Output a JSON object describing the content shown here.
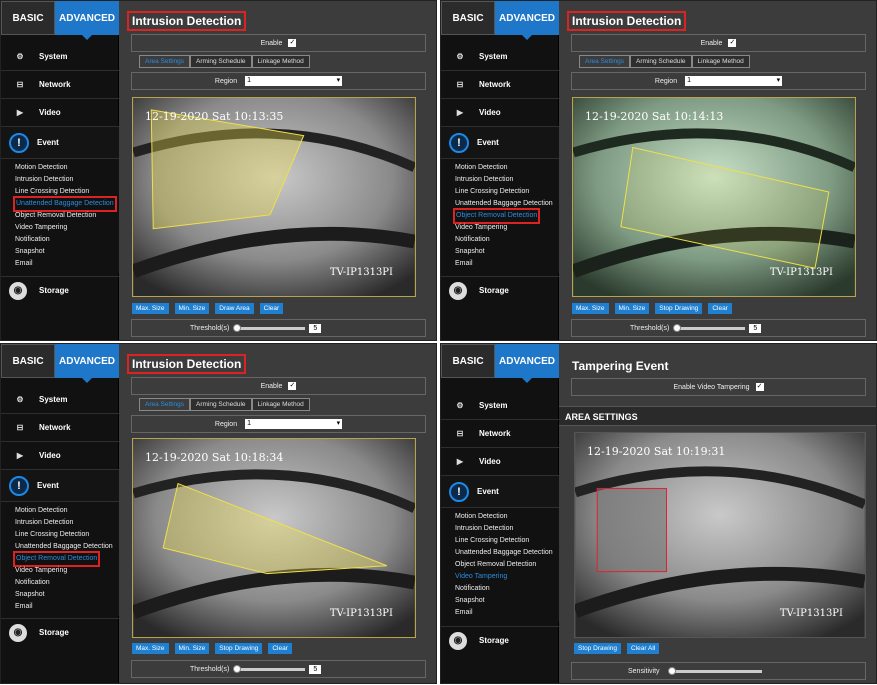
{
  "tabs": {
    "basic": "BASIC",
    "advanced": "ADVANCED"
  },
  "menu": {
    "system": "System",
    "network": "Network",
    "video": "Video",
    "event": "Event",
    "storage": "Storage"
  },
  "submenu": [
    "Motion Detection",
    "Intrusion Detection",
    "Line Crossing Detection",
    "Unattended Baggage Detection",
    "Object Removal Detection",
    "Video Tampering",
    "Notification",
    "Snapshot",
    "Email"
  ],
  "intrusion": {
    "title": "Intrusion Detection",
    "enable_label": "Enable",
    "check": "✓",
    "tab_area": "Area Settings",
    "tab_schedule": "Arming Schedule",
    "tab_linkage": "Linkage Method",
    "region_label": "Region",
    "region_value": "1",
    "threshold_label": "Threshold(s)",
    "threshold_value": "5",
    "btn_max": "Max. Size",
    "btn_min": "Min. Size",
    "btn_draw": "Draw Area",
    "btn_stop": "Stop Drawing",
    "btn_clear": "Clear"
  },
  "tampering": {
    "title": "Tampering Event",
    "enable_label": "Enable Video Tampering",
    "area_settings": "AREA SETTINGS",
    "btn_stop": "Stop Drawing",
    "btn_clear_all": "Clear All",
    "sensitivity_label": "Sensitivity"
  },
  "camera": {
    "model": "TV-IP1313PI"
  },
  "panels": [
    {
      "timestamp": "12-19-2020 Sat 10:13:35",
      "highlight": "Unattended Baggage Detection"
    },
    {
      "timestamp": "12-19-2020 Sat 10:14:13",
      "highlight": "Object Removal Detection"
    },
    {
      "timestamp": "12-19-2020 Sat 10:18:34",
      "highlight": "Object Removal Detection"
    },
    {
      "timestamp": "12-19-2020 Sat 10:19:31",
      "highlight": "Video Tampering"
    }
  ],
  "colors": {
    "accent": "#1f77c9",
    "highlight": "#dd2222",
    "zone": "#f0e04a"
  }
}
